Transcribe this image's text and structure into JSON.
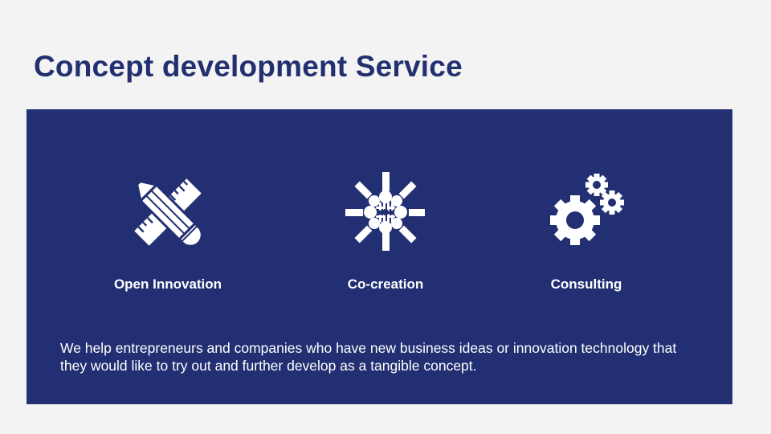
{
  "slide": {
    "title": "Concept development Service"
  },
  "services": [
    {
      "label": "Open Innovation",
      "icon": "pencil-ruler-icon"
    },
    {
      "label": "Co-creation",
      "icon": "hands-together-icon"
    },
    {
      "label": "Consulting",
      "icon": "gears-icon"
    }
  ],
  "description": "We help entrepreneurs and companies who have new business ideas or innovation technology that they would like to try out and further develop as a tangible concept.",
  "colors": {
    "title": "#22306f",
    "panel": "#222f72",
    "background": "#f3f3f4",
    "panel_text": "#ffffff"
  }
}
